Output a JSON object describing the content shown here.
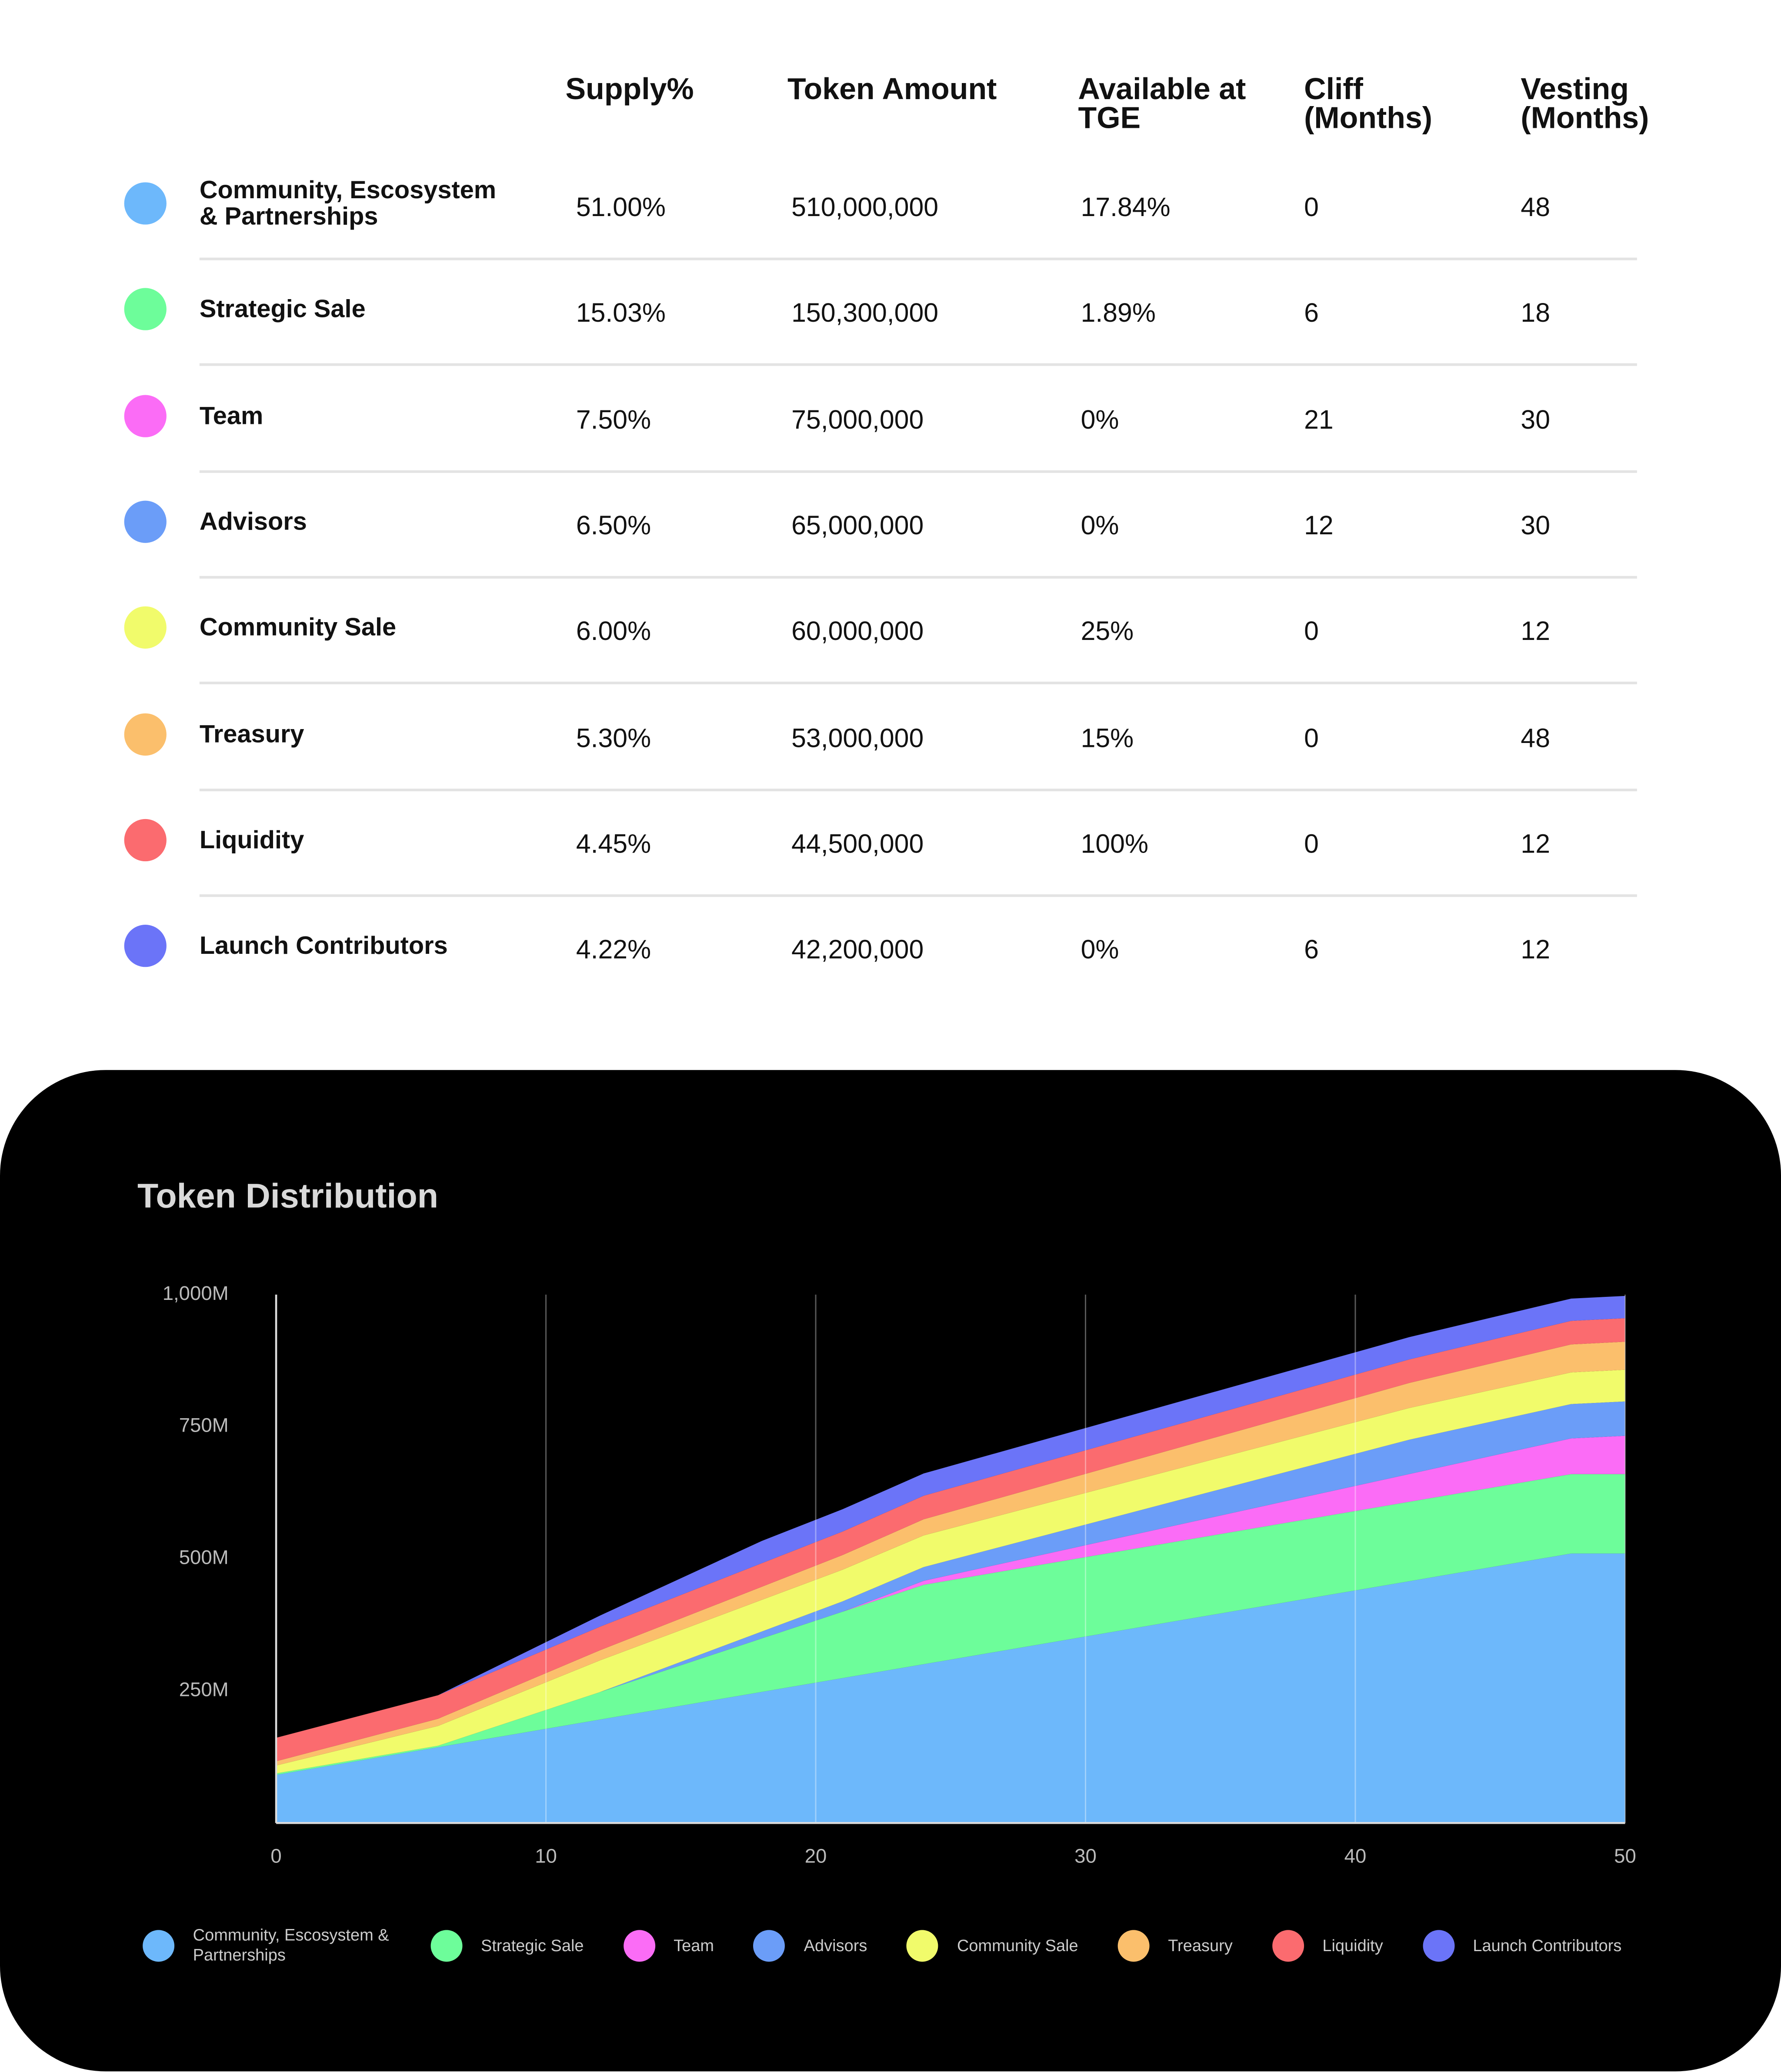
{
  "table": {
    "header": [
      "Supply%",
      "Token Amount",
      "Available at TGE",
      "Cliff (Months)",
      "Vesting (Months)"
    ],
    "rows": [
      [
        "Community, Escosystem & Partnerships",
        "51.00%",
        "510,000,000",
        "17.84%",
        "0",
        "48"
      ],
      [
        "Strategic Sale",
        "15.03%",
        "150,300,000",
        "1.89%",
        "6",
        "18"
      ],
      [
        "Team",
        "7.50%",
        "75,000,000",
        "0%",
        "21",
        "30"
      ],
      [
        "Advisors",
        "6.50%",
        "65,000,000",
        "0%",
        "12",
        "30"
      ],
      [
        "Community Sale",
        "6.00%",
        "60,000,000",
        "25%",
        "0",
        "12"
      ],
      [
        "Treasury",
        "5.30%",
        "53,000,000",
        "15%",
        "0",
        "48"
      ],
      [
        "Liquidity",
        "4.45%",
        "44,500,000",
        "100%",
        "0",
        "12"
      ],
      [
        "Launch Contributors",
        "4.22%",
        "42,200,000",
        "0%",
        "6",
        "12"
      ]
    ]
  },
  "chart_data": {
    "type": "stacked_area",
    "title": "Token Distribution",
    "x": [
      0,
      6,
      12,
      18,
      21,
      24,
      30,
      36,
      42,
      48,
      50
    ],
    "series": [
      {
        "name": "Community, Escosystem & Partnerships",
        "color": "#6db8fb",
        "values": [
          91.0,
          143.4,
          195.7,
          248.1,
          274.3,
          300.5,
          352.9,
          405.3,
          457.6,
          510,
          510
        ]
      },
      {
        "name": "Strategic Sale",
        "color": "#6dfd9a",
        "values": [
          2.8,
          2.8,
          52.0,
          101.2,
          125.7,
          150.3,
          150.3,
          150.3,
          150.3,
          150.3,
          150.3
        ]
      },
      {
        "name": "Team",
        "color": "#fb6cf6",
        "values": [
          0,
          0,
          0,
          0,
          0,
          7.5,
          22.5,
          37.5,
          52.5,
          67.5,
          72.5
        ]
      },
      {
        "name": "Advisors",
        "color": "#6b9df8",
        "values": [
          0,
          0,
          0,
          13.0,
          19.5,
          26.0,
          39.0,
          52.0,
          65,
          65,
          65
        ]
      },
      {
        "name": "Community Sale",
        "color": "#f1fb6b",
        "values": [
          15,
          37.5,
          60,
          60,
          60,
          60,
          60,
          60,
          60,
          60,
          60
        ]
      },
      {
        "name": "Treasury",
        "color": "#fbbf6c",
        "values": [
          8.0,
          13.6,
          19.2,
          24.8,
          27.7,
          30.5,
          36.1,
          41.7,
          47.4,
          53,
          53
        ]
      },
      {
        "name": "Liquidity",
        "color": "#fb6b6f",
        "values": [
          44.5,
          44.5,
          44.5,
          44.5,
          44.5,
          44.5,
          44.5,
          44.5,
          44.5,
          44.5,
          44.5
        ]
      },
      {
        "name": "Launch Contributors",
        "color": "#6b74f8",
        "values": [
          0,
          0,
          21.1,
          42.2,
          42.2,
          42.2,
          42.2,
          42.2,
          42.2,
          42.2,
          42.2
        ]
      }
    ],
    "xlim": [
      0,
      50
    ],
    "xticks": [
      0,
      10,
      20,
      30,
      40,
      50
    ],
    "ylim": [
      0,
      1000
    ],
    "yticks": [
      {
        "value": 250,
        "label": "250M"
      },
      {
        "value": 500,
        "label": "500M"
      },
      {
        "value": 750,
        "label": "750M"
      },
      {
        "value": 1000,
        "label": "1,000M"
      }
    ],
    "grid": true
  }
}
